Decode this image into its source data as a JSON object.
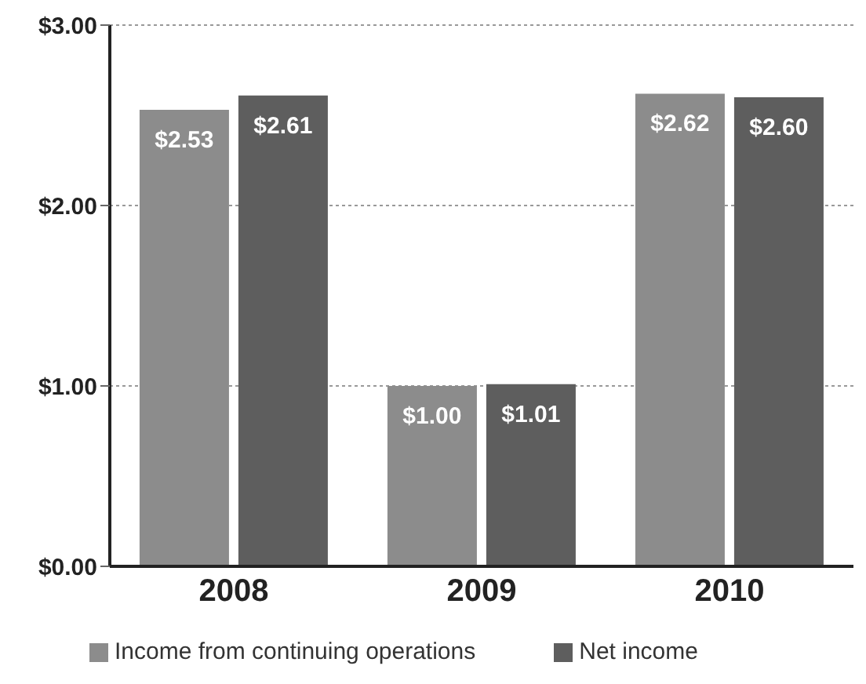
{
  "chart_data": {
    "type": "bar",
    "categories": [
      "2008",
      "2009",
      "2010"
    ],
    "series": [
      {
        "name": "Income from continuing operations",
        "color": "#8c8c8c",
        "values": [
          2.53,
          1.0,
          2.62
        ],
        "value_labels": [
          "$2.53",
          "$1.00",
          "$2.62"
        ]
      },
      {
        "name": "Net income",
        "color": "#5e5e5e",
        "values": [
          2.61,
          1.01,
          2.6
        ],
        "value_labels": [
          "$2.61",
          "$1.01",
          "$2.60"
        ]
      }
    ],
    "ylim": [
      0,
      3
    ],
    "yticks": [
      {
        "value": 0,
        "label": "$0.00"
      },
      {
        "value": 1,
        "label": "$1.00"
      },
      {
        "value": 2,
        "label": "$2.00"
      },
      {
        "value": 3,
        "label": "$3.00"
      }
    ],
    "grid": "y",
    "legend": "bottom"
  }
}
